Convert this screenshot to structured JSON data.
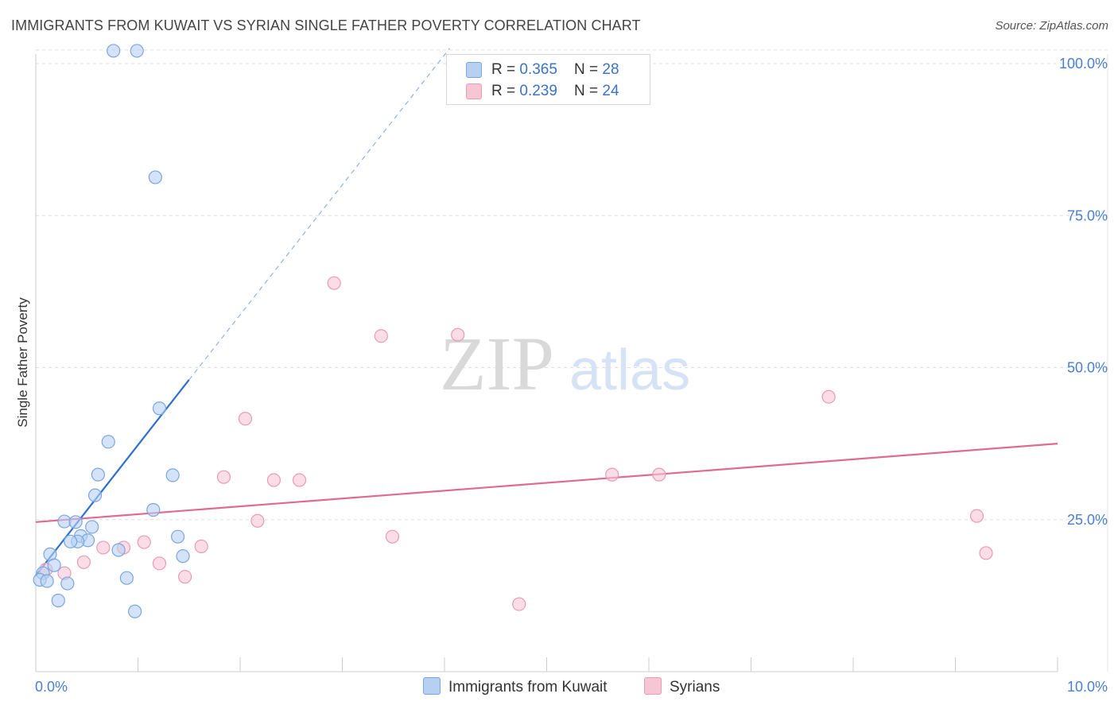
{
  "header": {
    "title": "IMMIGRANTS FROM KUWAIT VS SYRIAN SINGLE FATHER POVERTY CORRELATION CHART",
    "source": "Source: ZipAtlas.com"
  },
  "watermark": {
    "zip": "ZIP",
    "atlas": "atlas"
  },
  "legend": {
    "kuwait": {
      "r_label": "R = ",
      "r_value": "0.365",
      "n_label": "N = ",
      "n_value": "28"
    },
    "syrians": {
      "r_label": "R = ",
      "r_value": "0.239",
      "n_label": "N = ",
      "n_value": "24"
    }
  },
  "bottom_legend": {
    "kuwait": "Immigrants from Kuwait",
    "syrians": "Syrians"
  },
  "colors": {
    "kuwait_fill": "#b7d0f2",
    "kuwait_stroke": "#7aa6e0",
    "kuwait_line": "#2f6fd0",
    "syrians_fill": "#f7c6d5",
    "syrians_stroke": "#ea9ab3",
    "syrians_line": "#e06a93",
    "tick_text": "#4a7fd0",
    "grid": "#dddddd"
  },
  "chart_data": {
    "type": "scatter",
    "title": "IMMIGRANTS FROM KUWAIT VS SYRIAN SINGLE FATHER POVERTY CORRELATION CHART",
    "xlabel": "",
    "ylabel": "Single Father Poverty",
    "xlim": [
      0,
      10
    ],
    "ylim": [
      0,
      100
    ],
    "x_tick_labels": [
      "0.0%",
      "10.0%"
    ],
    "y_ticks": [
      25,
      50,
      75,
      100
    ],
    "y_tick_labels": [
      "25.0%",
      "50.0%",
      "75.0%",
      "100.0%"
    ],
    "grid": true,
    "series": [
      {
        "name": "Immigrants from Kuwait",
        "color": "#b7d0f2",
        "points": [
          [
            0.76,
            102.1
          ],
          [
            0.99,
            102.1
          ],
          [
            1.17,
            81.3
          ],
          [
            1.21,
            43.3
          ],
          [
            0.71,
            37.8
          ],
          [
            0.61,
            32.4
          ],
          [
            1.34,
            32.3
          ],
          [
            0.58,
            29.0
          ],
          [
            0.28,
            24.7
          ],
          [
            0.39,
            24.6
          ],
          [
            1.15,
            26.6
          ],
          [
            0.55,
            23.8
          ],
          [
            0.44,
            22.3
          ],
          [
            0.51,
            21.6
          ],
          [
            0.41,
            21.4
          ],
          [
            0.34,
            21.4
          ],
          [
            1.39,
            22.2
          ],
          [
            0.81,
            20.0
          ],
          [
            1.44,
            19.0
          ],
          [
            0.14,
            19.3
          ],
          [
            0.18,
            17.5
          ],
          [
            0.07,
            16.2
          ],
          [
            0.04,
            15.1
          ],
          [
            0.11,
            14.9
          ],
          [
            0.31,
            14.5
          ],
          [
            0.89,
            15.4
          ],
          [
            0.22,
            11.7
          ],
          [
            0.97,
            9.9
          ]
        ],
        "trendline": {
          "solid_x": [
            0,
            1.5
          ],
          "solid_y": [
            15.8,
            48.0
          ],
          "dashed_x": [
            1.5,
            4.05
          ],
          "dashed_y": [
            48.0,
            102.5
          ]
        }
      },
      {
        "name": "Syrians",
        "color": "#f7c6d5",
        "points": [
          [
            2.92,
            63.9
          ],
          [
            4.13,
            55.4
          ],
          [
            3.38,
            55.2
          ],
          [
            7.76,
            45.2
          ],
          [
            2.05,
            41.6
          ],
          [
            1.84,
            32.0
          ],
          [
            5.64,
            32.4
          ],
          [
            6.1,
            32.4
          ],
          [
            2.33,
            31.5
          ],
          [
            2.58,
            31.5
          ],
          [
            9.21,
            25.6
          ],
          [
            2.17,
            24.8
          ],
          [
            3.49,
            22.2
          ],
          [
            1.06,
            21.3
          ],
          [
            0.86,
            20.4
          ],
          [
            1.62,
            20.6
          ],
          [
            0.66,
            20.4
          ],
          [
            9.3,
            19.5
          ],
          [
            0.47,
            18.0
          ],
          [
            1.21,
            17.8
          ],
          [
            0.1,
            16.8
          ],
          [
            0.28,
            16.2
          ],
          [
            1.46,
            15.6
          ],
          [
            4.73,
            11.1
          ]
        ],
        "trendline": {
          "x": [
            0,
            10
          ],
          "y": [
            24.6,
            37.5
          ]
        }
      }
    ]
  }
}
